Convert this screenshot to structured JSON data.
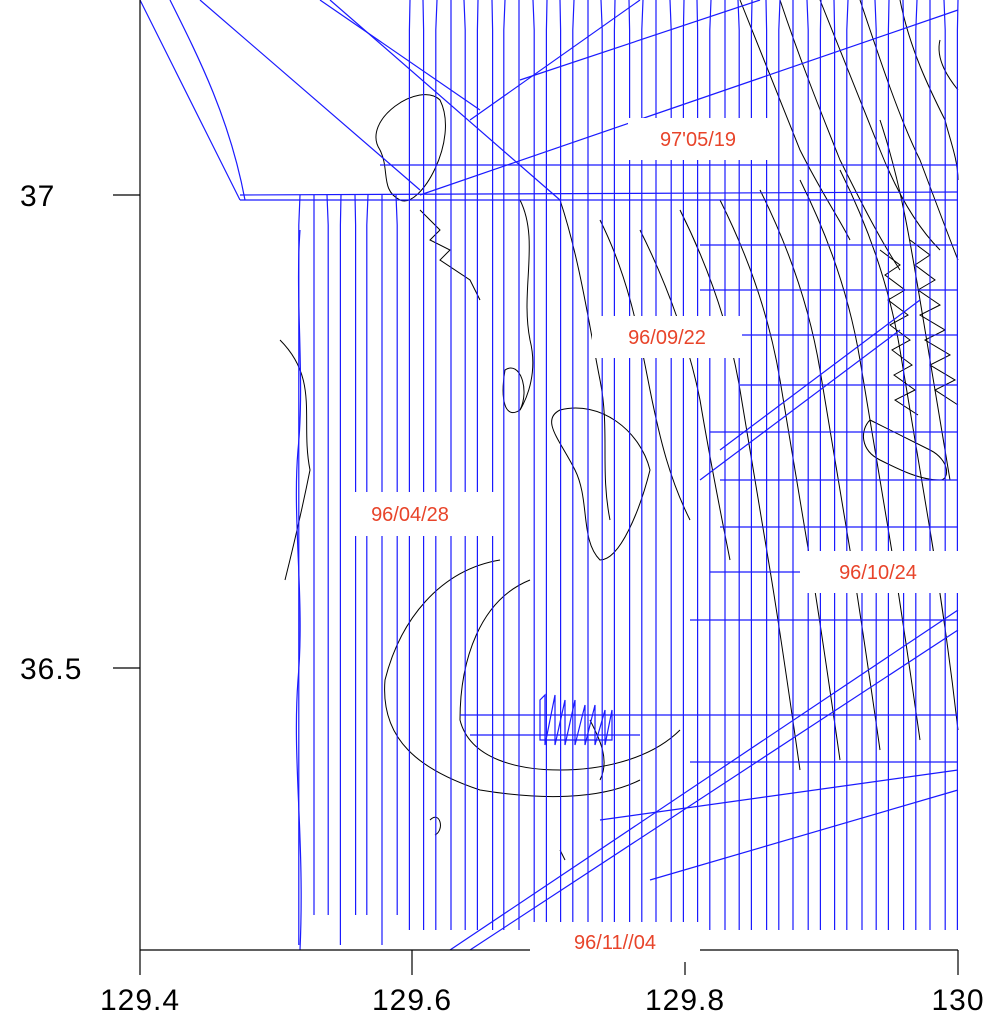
{
  "map": {
    "x_axis": {
      "ticks": [
        {
          "value": 129.4,
          "label": "129.4"
        },
        {
          "value": 129.6,
          "label": "129.6"
        },
        {
          "value": 129.8,
          "label": "129.8"
        },
        {
          "value": 130.0,
          "label": "130"
        }
      ],
      "range": [
        129.4,
        130.0
      ]
    },
    "y_axis": {
      "ticks": [
        {
          "value": 36.5,
          "label": "36.5"
        },
        {
          "value": 37.0,
          "label": "37"
        }
      ],
      "range": [
        36.24,
        37.2
      ]
    },
    "survey_labels": [
      {
        "text": "97'05/19"
      },
      {
        "text": "96/09/22"
      },
      {
        "text": "96/04/28"
      },
      {
        "text": "96/10/24"
      },
      {
        "text": "96/11//04"
      }
    ],
    "colors": {
      "track": "#1a1aff",
      "contour": "#000000",
      "label": "#e8442a"
    }
  }
}
